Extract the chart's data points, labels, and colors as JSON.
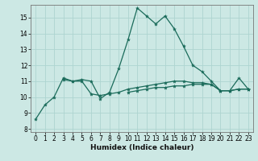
{
  "title": "",
  "xlabel": "Humidex (Indice chaleur)",
  "ylabel": "",
  "bg_color": "#cce8e4",
  "grid_color": "#aed4d0",
  "line_color": "#1a6b5a",
  "xlim": [
    -0.5,
    23.5
  ],
  "ylim": [
    7.8,
    15.8
  ],
  "yticks": [
    8,
    9,
    10,
    11,
    12,
    13,
    14,
    15
  ],
  "xticks": [
    0,
    1,
    2,
    3,
    4,
    5,
    6,
    7,
    8,
    9,
    10,
    11,
    12,
    13,
    14,
    15,
    16,
    17,
    18,
    19,
    20,
    21,
    22,
    23
  ],
  "series": [
    [
      8.6,
      9.5,
      10.0,
      11.2,
      11.0,
      11.1,
      11.0,
      9.9,
      10.3,
      11.8,
      13.6,
      15.6,
      15.1,
      14.6,
      15.1,
      14.3,
      13.2,
      12.0,
      11.6,
      11.0,
      10.4,
      10.4,
      11.2,
      10.5
    ],
    [
      null,
      null,
      null,
      11.1,
      11.0,
      11.0,
      10.2,
      10.1,
      10.2,
      10.3,
      10.5,
      10.6,
      10.7,
      10.8,
      10.9,
      11.0,
      11.0,
      10.9,
      10.9,
      10.8,
      10.4,
      10.4,
      10.5,
      10.5
    ],
    [
      null,
      null,
      null,
      null,
      null,
      null,
      null,
      null,
      null,
      null,
      10.3,
      10.4,
      10.5,
      10.6,
      10.6,
      10.7,
      10.7,
      10.8,
      10.8,
      10.8,
      10.4,
      10.4,
      10.5,
      10.5
    ]
  ],
  "xlabel_fontsize": 6.5,
  "tick_fontsize": 5.5,
  "linewidth": 0.9,
  "markersize": 3.0
}
